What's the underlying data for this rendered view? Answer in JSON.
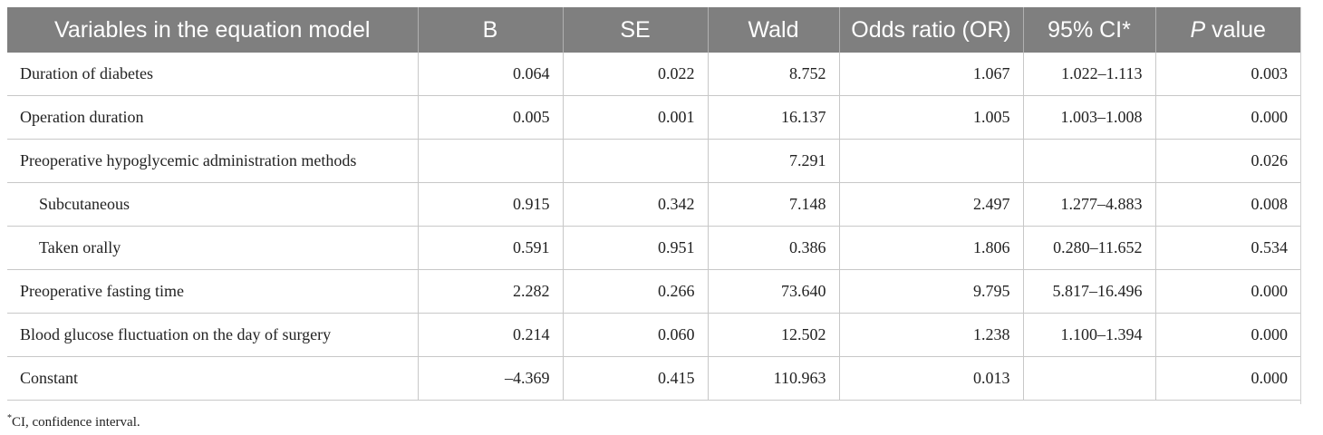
{
  "table": {
    "headers": {
      "variable": "Variables in the equation model",
      "b": "B",
      "se": "SE",
      "wald": "Wald",
      "or": "Odds ratio (OR)",
      "ci": "95% CI*",
      "p_italic": "P",
      "p_rest": " value"
    },
    "rows": [
      {
        "variable": "Duration of diabetes",
        "b": "0.064",
        "se": "0.022",
        "wald": "8.752",
        "or": "1.067",
        "ci": "1.022–1.113",
        "p": "0.003"
      },
      {
        "variable": "Operation duration",
        "b": "0.005",
        "se": "0.001",
        "wald": "16.137",
        "or": "1.005",
        "ci": "1.003–1.008",
        "p": "0.000"
      },
      {
        "variable": "Preoperative hypoglycemic administration methods",
        "b": "",
        "se": "",
        "wald": "7.291",
        "or": "",
        "ci": "",
        "p": "0.026"
      },
      {
        "variable": "Subcutaneous",
        "b": "0.915",
        "se": "0.342",
        "wald": "7.148",
        "or": "2.497",
        "ci": "1.277–4.883",
        "p": "0.008"
      },
      {
        "variable": "Taken orally",
        "b": "0.591",
        "se": "0.951",
        "wald": "0.386",
        "or": "1.806",
        "ci": "0.280–11.652",
        "p": "0.534"
      },
      {
        "variable": "Preoperative fasting time",
        "b": "2.282",
        "se": "0.266",
        "wald": "73.640",
        "or": "9.795",
        "ci": "5.817–16.496",
        "p": "0.000"
      },
      {
        "variable": "Blood glucose fluctuation on the day of surgery",
        "b": "0.214",
        "se": "0.060",
        "wald": "12.502",
        "or": "1.238",
        "ci": "1.100–1.394",
        "p": "0.000"
      },
      {
        "variable": "Constant",
        "b": "–4.369",
        "se": "0.415",
        "wald": "110.963",
        "or": "0.013",
        "ci": "",
        "p": "0.000"
      }
    ]
  },
  "footnote": {
    "mark": "*",
    "text": "CI, confidence interval."
  }
}
